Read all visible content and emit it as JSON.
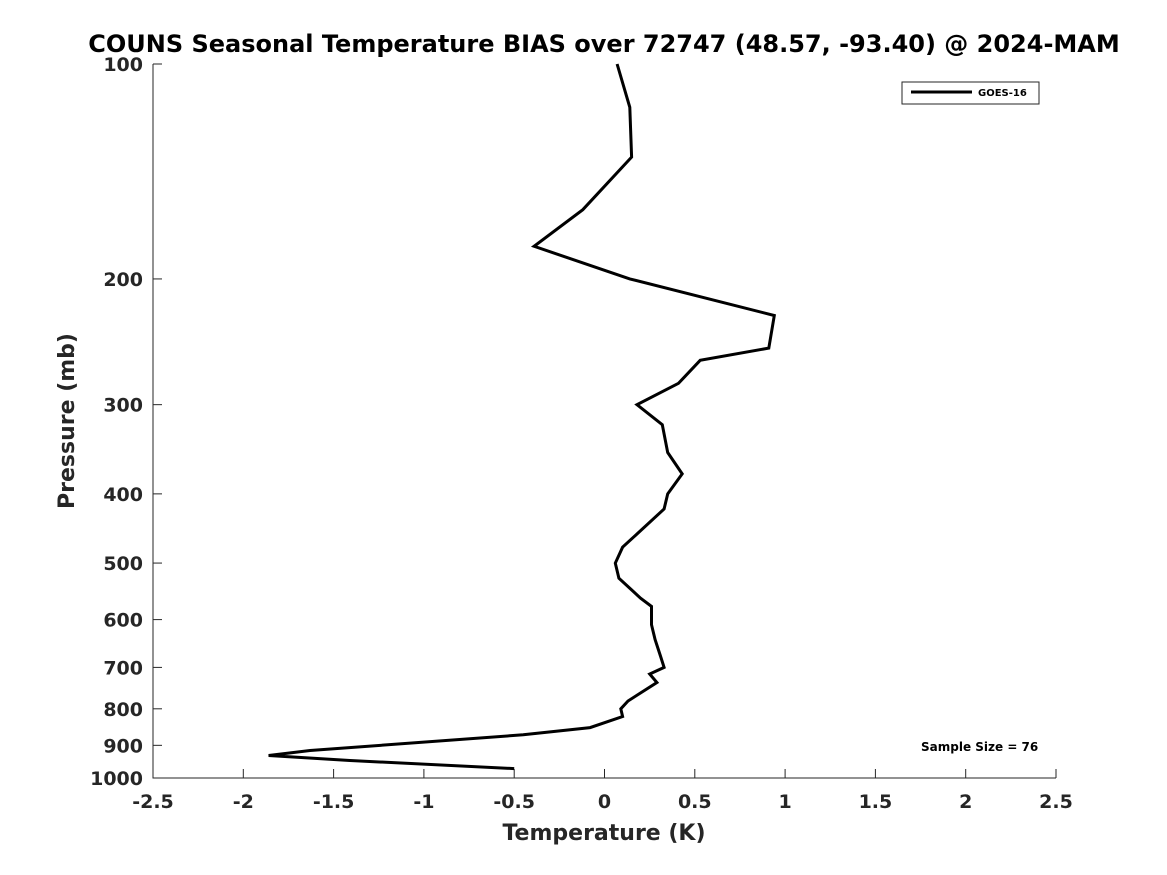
{
  "chart_data": {
    "type": "line",
    "title": "COUNS Seasonal Temperature BIAS over 72747 (48.57, -93.40) @ 2024-MAM",
    "xlabel": "Temperature (K)",
    "ylabel": "Pressure (mb)",
    "xlim": [
      -2.5,
      2.5
    ],
    "ylim": [
      1000,
      100
    ],
    "yscale": "log",
    "y_reversed": true,
    "xticks": [
      -2.5,
      -2,
      -1.5,
      -1,
      -0.5,
      0,
      0.5,
      1,
      1.5,
      2,
      2.5
    ],
    "xtick_labels": [
      "-2.5",
      "-2",
      "-1.5",
      "-1",
      "-0.5",
      "0",
      "0.5",
      "1",
      "1.5",
      "2",
      "2.5"
    ],
    "yticks": [
      100,
      200,
      300,
      400,
      500,
      600,
      700,
      800,
      900,
      1000
    ],
    "ytick_labels": [
      "100",
      "200",
      "300",
      "400",
      "500",
      "600",
      "700",
      "800",
      "900",
      "1000"
    ],
    "grid": false,
    "legend_position": "top-right",
    "annotation": "Sample Size = 76",
    "series": [
      {
        "name": "GOES-16",
        "color": "#000000",
        "points": [
          {
            "x": 0.07,
            "y": 100
          },
          {
            "x": 0.14,
            "y": 115
          },
          {
            "x": 0.15,
            "y": 135
          },
          {
            "x": -0.12,
            "y": 160
          },
          {
            "x": -0.39,
            "y": 180
          },
          {
            "x": 0.14,
            "y": 200
          },
          {
            "x": 0.94,
            "y": 225
          },
          {
            "x": 0.91,
            "y": 250
          },
          {
            "x": 0.53,
            "y": 260
          },
          {
            "x": 0.41,
            "y": 280
          },
          {
            "x": 0.18,
            "y": 300
          },
          {
            "x": 0.32,
            "y": 320
          },
          {
            "x": 0.35,
            "y": 350
          },
          {
            "x": 0.43,
            "y": 375
          },
          {
            "x": 0.35,
            "y": 400
          },
          {
            "x": 0.33,
            "y": 420
          },
          {
            "x": 0.1,
            "y": 475
          },
          {
            "x": 0.06,
            "y": 500
          },
          {
            "x": 0.08,
            "y": 525
          },
          {
            "x": 0.2,
            "y": 560
          },
          {
            "x": 0.26,
            "y": 575
          },
          {
            "x": 0.26,
            "y": 610
          },
          {
            "x": 0.28,
            "y": 640
          },
          {
            "x": 0.31,
            "y": 675
          },
          {
            "x": 0.33,
            "y": 700
          },
          {
            "x": 0.25,
            "y": 715
          },
          {
            "x": 0.29,
            "y": 735
          },
          {
            "x": 0.13,
            "y": 780
          },
          {
            "x": 0.09,
            "y": 800
          },
          {
            "x": 0.1,
            "y": 820
          },
          {
            "x": -0.08,
            "y": 850
          },
          {
            "x": -0.45,
            "y": 870
          },
          {
            "x": -1.63,
            "y": 915
          },
          {
            "x": -1.86,
            "y": 930
          },
          {
            "x": -1.41,
            "y": 945
          },
          {
            "x": -0.5,
            "y": 970
          }
        ]
      }
    ]
  }
}
